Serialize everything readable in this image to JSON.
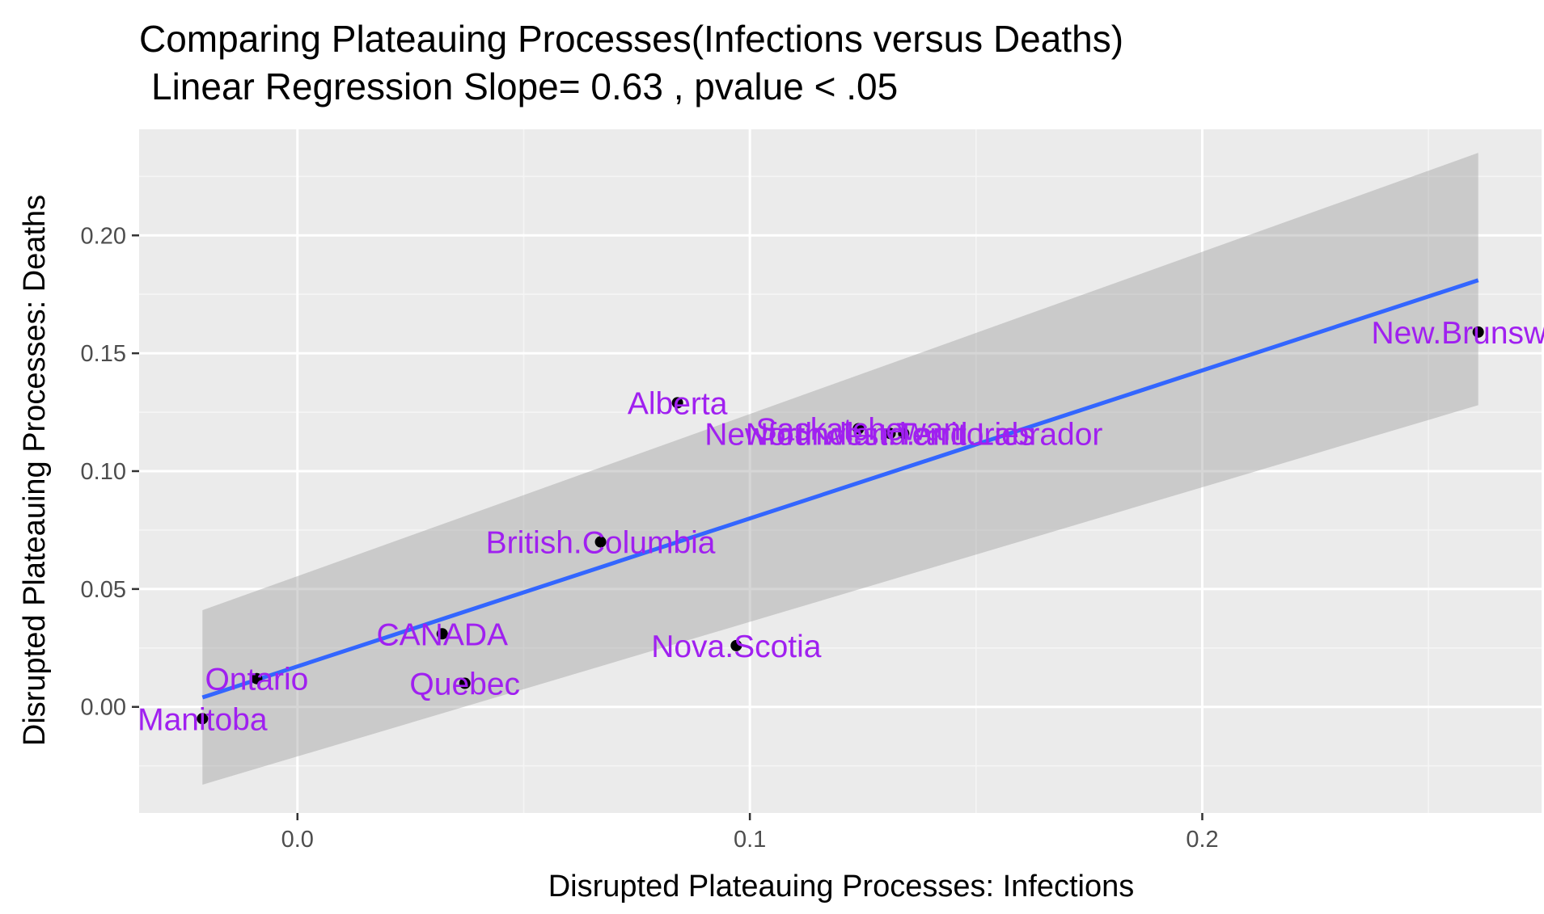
{
  "chart_data": {
    "type": "scatter",
    "title": "Comparing Plateauing Processes(Infections versus Deaths)",
    "subtitle": "Linear Regression Slope= 0.63 , pvalue  < .05",
    "xlabel": "Disrupted Plateauing Processes: Infections",
    "ylabel": "Disrupted Plateauing Processes: Deaths",
    "xlim": [
      -0.035,
      0.275
    ],
    "ylim": [
      -0.045,
      0.245
    ],
    "x_ticks": [
      {
        "value": 0.0,
        "label": "0.0"
      },
      {
        "value": 0.1,
        "label": "0.1"
      },
      {
        "value": 0.2,
        "label": "0.2"
      }
    ],
    "y_ticks": [
      {
        "value": 0.0,
        "label": "0.00"
      },
      {
        "value": 0.05,
        "label": "0.05"
      },
      {
        "value": 0.1,
        "label": "0.10"
      },
      {
        "value": 0.15,
        "label": "0.15"
      },
      {
        "value": 0.2,
        "label": "0.20"
      }
    ],
    "points": [
      {
        "label": "Manitoba",
        "x": -0.021,
        "y": -0.005
      },
      {
        "label": "Ontario",
        "x": -0.009,
        "y": 0.012
      },
      {
        "label": "CANADA",
        "x": 0.032,
        "y": 0.031
      },
      {
        "label": "Quebec",
        "x": 0.037,
        "y": 0.01
      },
      {
        "label": "British.Columbia",
        "x": 0.067,
        "y": 0.07
      },
      {
        "label": "Alberta",
        "x": 0.084,
        "y": 0.129
      },
      {
        "label": "Nova.Scotia",
        "x": 0.097,
        "y": 0.026
      },
      {
        "label": "Saskatchewan",
        "x": 0.124,
        "y": 0.118
      },
      {
        "label": "Northwest.Territories",
        "x": 0.131,
        "y": 0.116
      },
      {
        "label": "Newfoundland.and.Labrador",
        "x": 0.134,
        "y": 0.116
      },
      {
        "label": "New.Brunswick",
        "x": 0.261,
        "y": 0.159
      }
    ],
    "regression": {
      "slope": 0.63,
      "x_range": [
        -0.021,
        0.261
      ],
      "line_y": [
        0.004,
        0.181
      ],
      "ci_lower": [
        -0.033,
        0.128
      ],
      "ci_upper": [
        0.041,
        0.235
      ]
    },
    "grid": true,
    "colors": {
      "panel_background": "#ebebeb",
      "grid_major": "#ffffff",
      "grid_minor": "#f5f5f5",
      "point": "#000000",
      "label": "#a020f0",
      "regression_line": "#3366ff",
      "confidence_band": "#999999",
      "tick_label": "#4d4d4d"
    }
  }
}
